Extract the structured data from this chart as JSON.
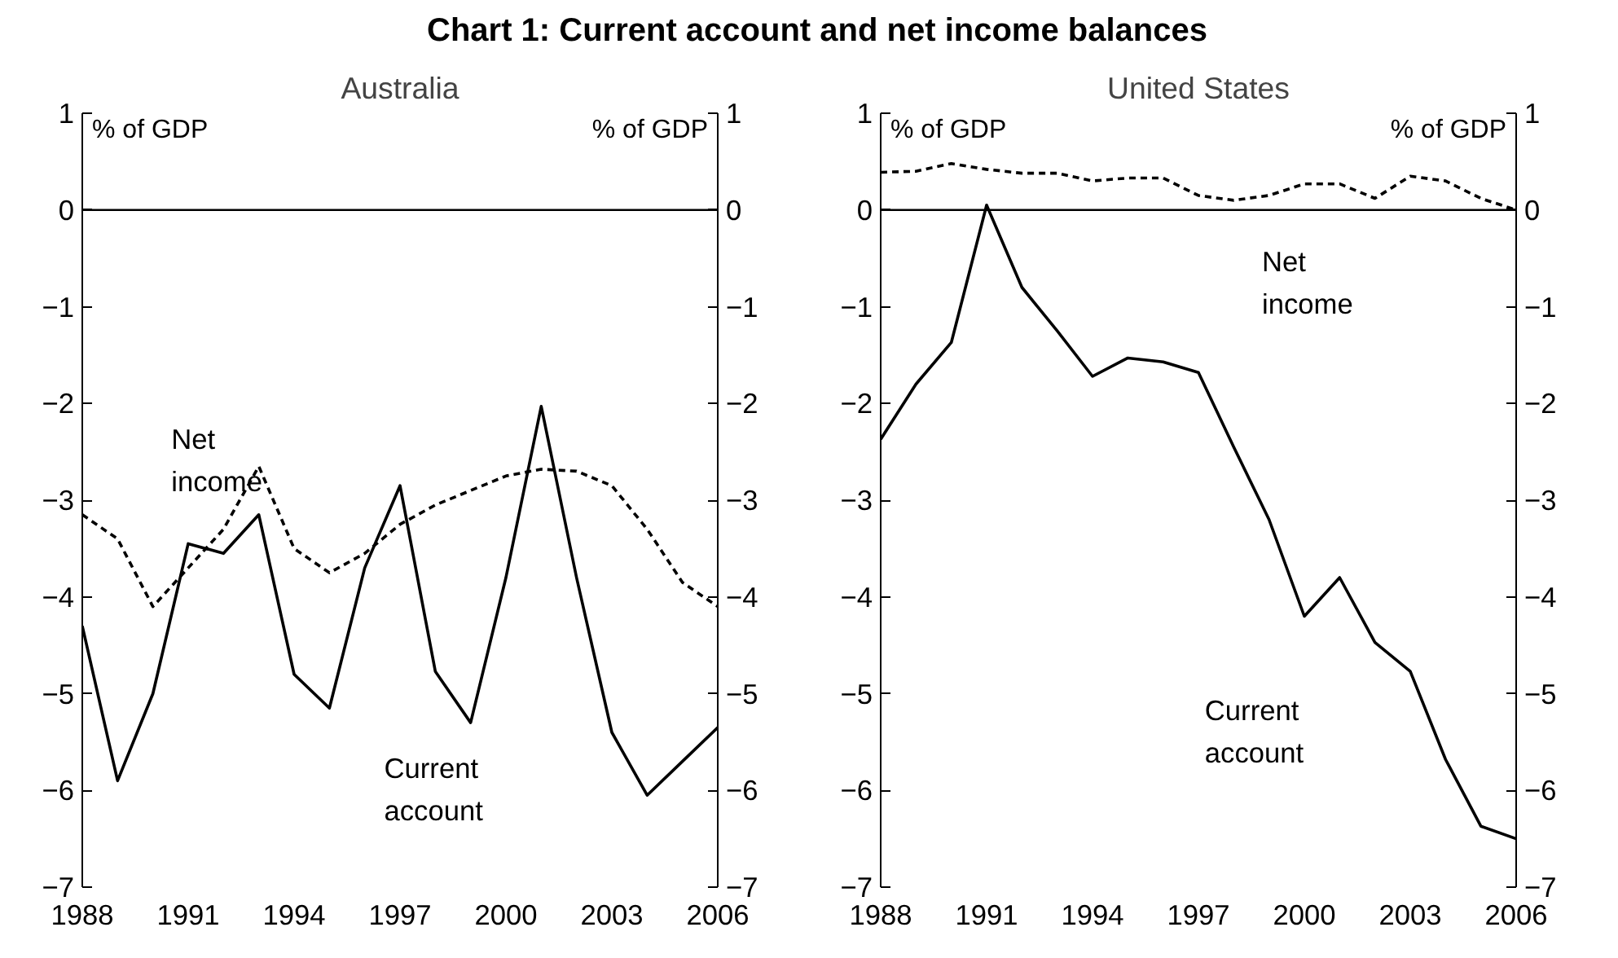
{
  "chart_data": [
    {
      "type": "line",
      "title": "Chart 1: Current account and net income balances",
      "subtitle": "Australia",
      "ylabel": "% of GDP",
      "y2label": "% of GDP",
      "x": [
        1988,
        1989,
        1990,
        1991,
        1992,
        1993,
        1994,
        1995,
        1996,
        1997,
        1998,
        1999,
        2000,
        2001,
        2002,
        2003,
        2004,
        2005,
        2006
      ],
      "series": [
        {
          "name": "Net income",
          "color": "#000000",
          "line_style": "dashed",
          "values": [
            -3.15,
            -3.4,
            -4.1,
            -3.7,
            -3.3,
            -2.65,
            -3.5,
            -3.75,
            -3.55,
            -3.25,
            -3.05,
            -2.9,
            -2.75,
            -2.68,
            -2.7,
            -2.85,
            -3.3,
            -3.85,
            -4.1
          ]
        },
        {
          "name": "Current account",
          "color": "#000000",
          "line_style": "solid",
          "values": [
            -4.3,
            -5.9,
            -5.0,
            -3.45,
            -3.55,
            -3.15,
            -4.8,
            -5.15,
            -3.7,
            -2.85,
            -4.77,
            -5.3,
            -3.8,
            -2.03,
            -3.8,
            -5.4,
            -6.05,
            -5.7,
            -5.35
          ]
        }
      ],
      "xlim": [
        1988,
        2006
      ],
      "xticks": [
        1988,
        1991,
        1994,
        1997,
        2000,
        2003,
        2006
      ],
      "ylim": [
        -7,
        1
      ],
      "yticks": [
        -7,
        -6,
        -5,
        -4,
        -3,
        -2,
        -1,
        0,
        1
      ],
      "y2lim": [
        -7,
        1
      ],
      "y2ticks": [
        -7,
        -6,
        -5,
        -4,
        -3,
        -2,
        -1,
        0,
        1
      ],
      "ref_lines": [
        {
          "axis": "y",
          "value": 0,
          "color": "#000000"
        }
      ],
      "grid": false
    },
    {
      "type": "line",
      "subtitle": "United States",
      "ylabel": "% of GDP",
      "y2label": "% of GDP",
      "x": [
        1988,
        1989,
        1990,
        1991,
        1992,
        1993,
        1994,
        1995,
        1996,
        1997,
        1998,
        1999,
        2000,
        2001,
        2002,
        2003,
        2004,
        2005,
        2006
      ],
      "series": [
        {
          "name": "Net income",
          "color": "#000000",
          "line_style": "dashed",
          "values": [
            0.39,
            0.4,
            0.48,
            0.42,
            0.38,
            0.38,
            0.3,
            0.33,
            0.33,
            0.15,
            0.1,
            0.15,
            0.27,
            0.27,
            0.12,
            0.35,
            0.3,
            0.12,
            0.0
          ]
        },
        {
          "name": "Current account",
          "color": "#000000",
          "line_style": "solid",
          "values": [
            -2.37,
            -1.8,
            -1.37,
            0.05,
            -0.8,
            -1.25,
            -1.72,
            -1.53,
            -1.57,
            -1.68,
            -2.45,
            -3.2,
            -4.2,
            -3.8,
            -4.47,
            -4.77,
            -5.68,
            -6.37,
            -6.5
          ]
        }
      ],
      "xlim": [
        1988,
        2006
      ],
      "xticks": [
        1988,
        1991,
        1994,
        1997,
        2000,
        2003,
        2006
      ],
      "ylim": [
        -7,
        1
      ],
      "yticks": [
        -7,
        -6,
        -5,
        -4,
        -3,
        -2,
        -1,
        0,
        1
      ],
      "y2lim": [
        -7,
        1
      ],
      "y2ticks": [
        -7,
        -6,
        -5,
        -4,
        -3,
        -2,
        -1,
        0,
        1
      ],
      "ref_lines": [
        {
          "axis": "y",
          "value": 0,
          "color": "#000000"
        }
      ],
      "grid": false
    }
  ]
}
